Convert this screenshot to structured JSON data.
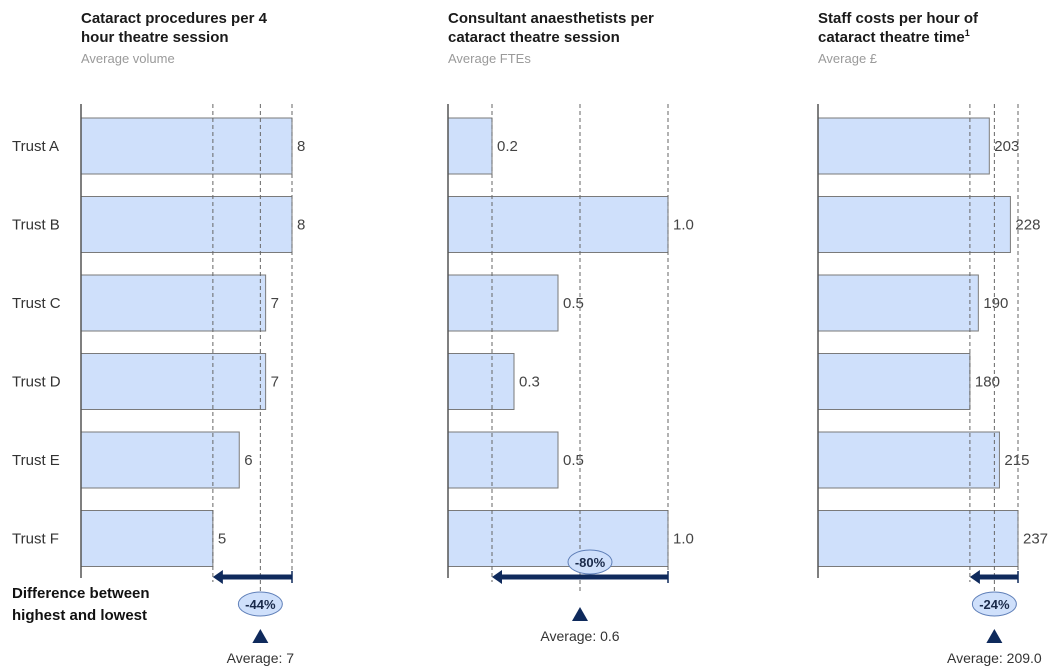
{
  "diff_label": [
    "Difference between",
    "highest and lowest"
  ],
  "colors": {
    "bar_fill": "#cfe0fb",
    "bar_stroke": "#7a7a7a",
    "arrow": "#0f2a5c",
    "ellipse": "#cfe0fb"
  },
  "chart_data": [
    {
      "type": "bar",
      "orientation": "horizontal",
      "title": [
        "Cataract procedures per 4",
        "hour theatre session"
      ],
      "subtitle": "Average volume",
      "categories": [
        "Trust A",
        "Trust B",
        "Trust C",
        "Trust D",
        "Trust E",
        "Trust F"
      ],
      "values": [
        8,
        8,
        7,
        7,
        6,
        5
      ],
      "value_labels": [
        "8",
        "8",
        "7",
        "7",
        "6",
        "5"
      ],
      "xlim": [
        0,
        8.0
      ],
      "average": 6.8,
      "average_label": "Average:  7",
      "difference_label": "-44%"
    },
    {
      "type": "bar",
      "orientation": "horizontal",
      "title": [
        "Consultant  anaesthetists  per",
        "cataract theatre session"
      ],
      "subtitle": "Average  FTEs",
      "categories": [
        "Trust A",
        "Trust B",
        "Trust C",
        "Trust D",
        "Trust E",
        "Trust F"
      ],
      "values": [
        0.2,
        1.0,
        0.5,
        0.3,
        0.5,
        1.0
      ],
      "value_labels": [
        "0.2",
        "1.0",
        "0.5",
        "0.3",
        "0.5",
        "1.0"
      ],
      "xlim": [
        0,
        1.0
      ],
      "average": 0.6,
      "average_label": "Average:  0.6",
      "difference_label": "-80%"
    },
    {
      "type": "bar",
      "orientation": "horizontal",
      "title": [
        "Staff costs  per hour of",
        "cataract theatre time"
      ],
      "title_sup": "1",
      "subtitle": "Average  £",
      "categories": [
        "Trust A",
        "Trust B",
        "Trust C",
        "Trust D",
        "Trust E",
        "Trust F"
      ],
      "values": [
        203,
        228,
        190,
        180,
        215,
        237
      ],
      "value_labels": [
        "203",
        "228",
        "190",
        "180",
        "215",
        "237"
      ],
      "xlim": [
        0,
        237
      ],
      "average": 209.0,
      "average_label": "Average:  209.0",
      "difference_label": "-24%"
    }
  ]
}
